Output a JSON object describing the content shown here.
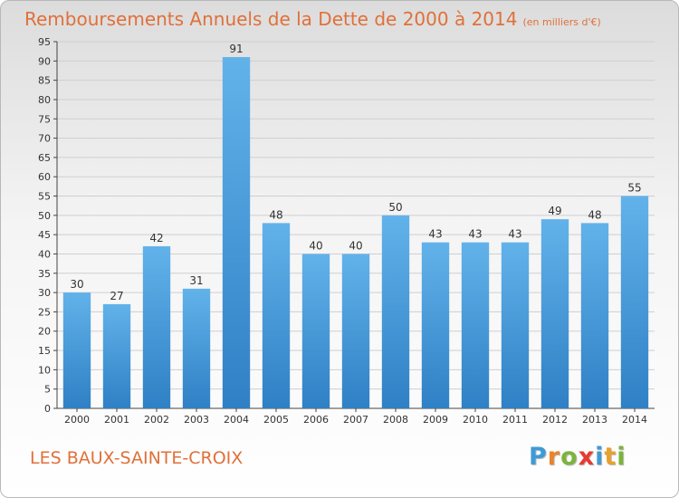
{
  "title": "Remboursements Annuels de la Dette de 2000 à 2014",
  "unit_label": "(en milliers d'€)",
  "commune": "LES BAUX-SAINTE-CROIX",
  "logo": {
    "letters": [
      "P",
      "r",
      "o",
      "x",
      "i",
      "t",
      "i"
    ],
    "colors": [
      "#3f9ad6",
      "#e9832c",
      "#7cb43c",
      "#e53b2e",
      "#3f9ad6",
      "#e9a02c",
      "#7cb43c"
    ]
  },
  "colors": {
    "accent": "#e0703a",
    "bar_top": "#62b2ea",
    "bar_bottom": "#2f80c5",
    "grid": "#cfcfcf",
    "axis": "#444444"
  },
  "chart_data": {
    "type": "bar",
    "categories": [
      "2000",
      "2001",
      "2002",
      "2003",
      "2004",
      "2005",
      "2006",
      "2007",
      "2008",
      "2009",
      "2010",
      "2011",
      "2012",
      "2013",
      "2014"
    ],
    "values": [
      30,
      27,
      42,
      31,
      91,
      48,
      40,
      40,
      50,
      43,
      43,
      43,
      49,
      48,
      55
    ],
    "data_labels": [
      "30",
      "27",
      "42",
      "31",
      "91",
      "48",
      "40",
      "40",
      "50",
      "43",
      "43",
      "43",
      "49",
      "48",
      "55"
    ],
    "yticks": [
      0,
      5,
      10,
      15,
      20,
      25,
      30,
      35,
      40,
      45,
      50,
      55,
      60,
      65,
      70,
      75,
      80,
      85,
      90,
      95
    ],
    "ylim": [
      0,
      95
    ],
    "grid": true,
    "title": "Remboursements Annuels de la Dette de 2000 à 2014",
    "xlabel": "",
    "ylabel": ""
  }
}
